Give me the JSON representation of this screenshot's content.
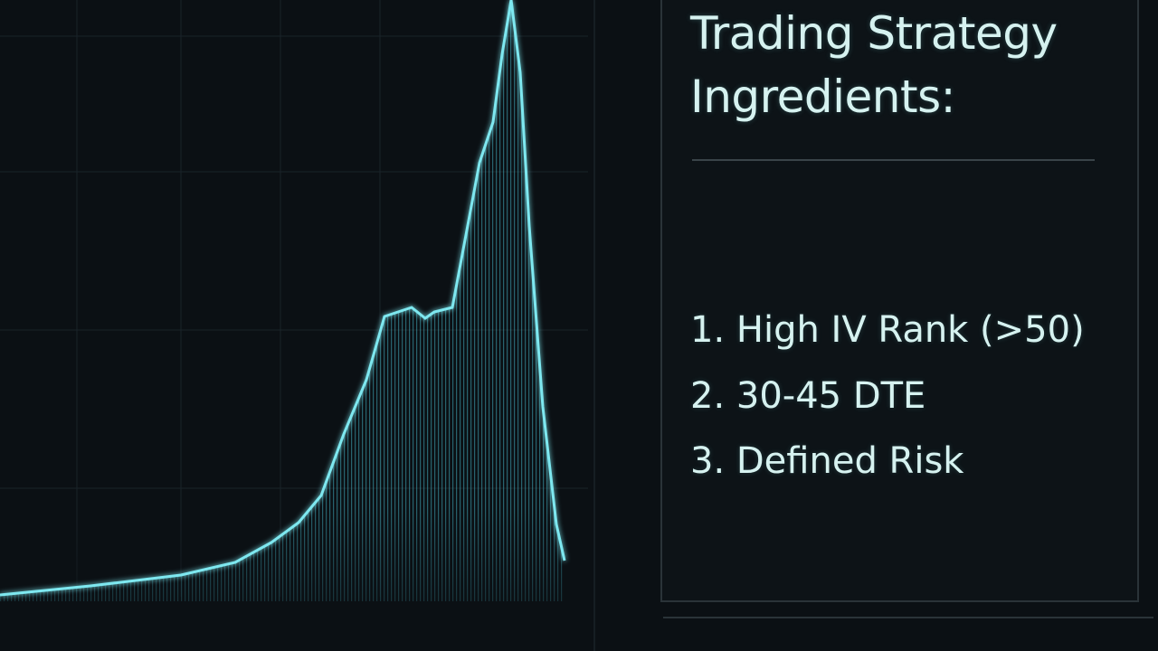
{
  "panel": {
    "title": "Trading Strategy Ingredients:",
    "items": [
      "1. High IV Rank (>50)",
      "2. 30-45 DTE",
      "3. Defined Risk"
    ]
  }
}
